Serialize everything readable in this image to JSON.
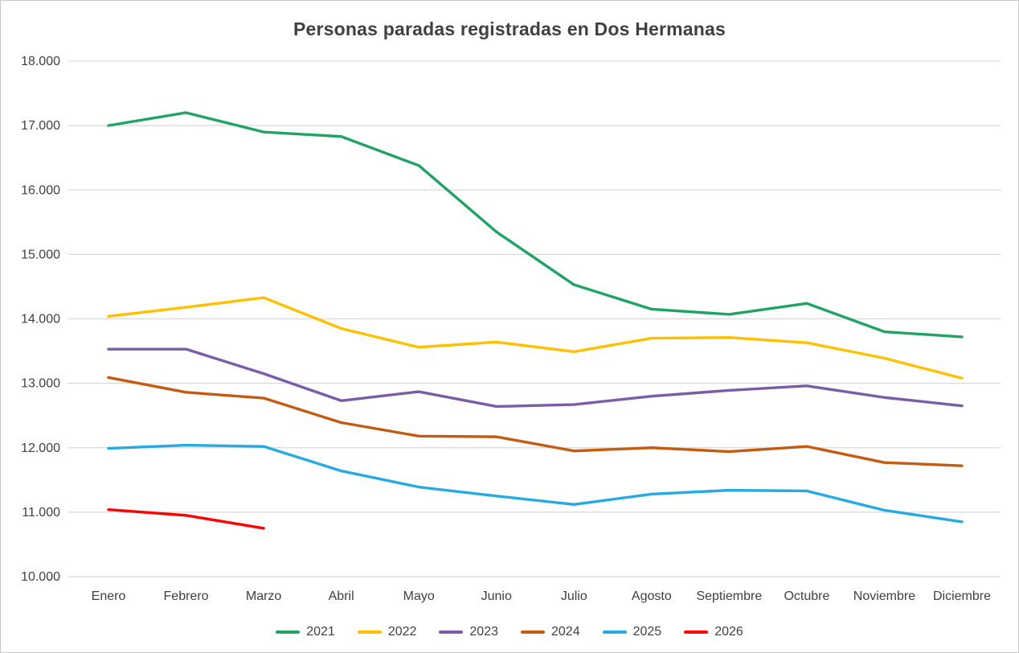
{
  "chart_data": {
    "type": "line",
    "title": "Personas paradas registradas en Dos Hermanas",
    "xlabel": "",
    "ylabel": "",
    "x": [
      "Enero",
      "Febrero",
      "Marzo",
      "Abril",
      "Mayo",
      "Junio",
      "Julio",
      "Agosto",
      "Septiembre",
      "Octubre",
      "Noviembre",
      "Diciembre"
    ],
    "ylim": [
      10000,
      18000
    ],
    "ytick_step": 1000,
    "ytick_labels": [
      "10.000",
      "11.000",
      "12.000",
      "13.000",
      "14.000",
      "15.000",
      "16.000",
      "17.000",
      "18.000"
    ],
    "grid": true,
    "legend_position": "bottom",
    "colors": {
      "grid": "#d9d9d9",
      "text": "#404040"
    },
    "series": [
      {
        "name": "2021",
        "color": "#21A366",
        "values": [
          17000,
          17200,
          16900,
          16830,
          16380,
          15350,
          14530,
          14150,
          14070,
          14240,
          13800,
          13720
        ]
      },
      {
        "name": "2022",
        "color": "#FFC000",
        "values": [
          14040,
          14180,
          14330,
          13850,
          13560,
          13640,
          13490,
          13700,
          13710,
          13630,
          13390,
          13080
        ]
      },
      {
        "name": "2023",
        "color": "#7A5CA8",
        "values": [
          13530,
          13530,
          13150,
          12730,
          12870,
          12640,
          12670,
          12800,
          12890,
          12960,
          12780,
          12650
        ]
      },
      {
        "name": "2024",
        "color": "#C55A11",
        "values": [
          13090,
          12860,
          12770,
          12390,
          12180,
          12170,
          11950,
          12000,
          11940,
          12020,
          11770,
          11720
        ]
      },
      {
        "name": "2025",
        "color": "#27AAE1",
        "values": [
          11990,
          12040,
          12020,
          11640,
          11390,
          11250,
          11120,
          11280,
          11340,
          11330,
          11030,
          10850
        ]
      },
      {
        "name": "2026",
        "color": "#FF0000",
        "values": [
          11040,
          10950,
          10750
        ]
      }
    ]
  }
}
